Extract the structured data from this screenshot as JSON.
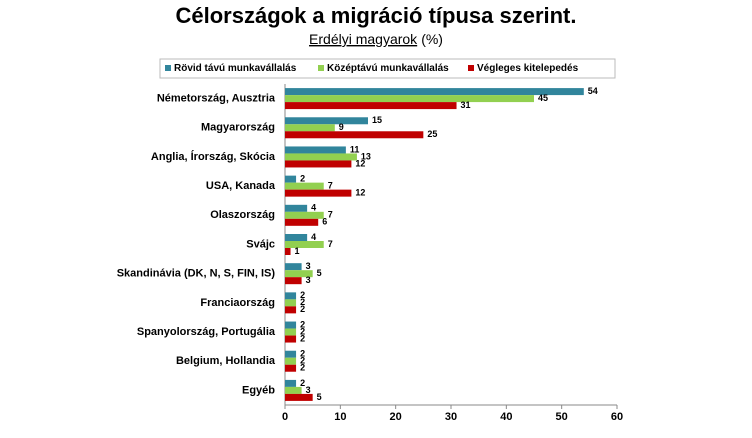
{
  "chart_data": {
    "type": "hbar",
    "title": "Célországok a migráció típusa szerint.",
    "subtitle": "Erdélyi magyarok",
    "unit": "(%)",
    "categories": [
      "Németország, Ausztria",
      "Magyarország",
      "Anglia, Írország, Skócia",
      "USA, Kanada",
      "Olaszország",
      "Svájc",
      "Skandinávia (DK, N, S, FIN, IS)",
      "Franciaország",
      "Spanyolország, Portugália",
      "Belgium, Hollandia",
      "Egyéb"
    ],
    "series": [
      {
        "name": "Rövid távú munkavállalás",
        "color": "#31859c",
        "values": [
          54,
          15,
          11,
          2,
          4,
          4,
          3,
          2,
          2,
          2,
          2
        ]
      },
      {
        "name": "Középtávú munkavállalás",
        "color": "#92d050",
        "values": [
          45,
          9,
          13,
          7,
          7,
          7,
          5,
          2,
          2,
          2,
          3
        ]
      },
      {
        "name": "Végleges kitelepedés",
        "color": "#c00000",
        "values": [
          31,
          25,
          12,
          12,
          6,
          1,
          3,
          2,
          2,
          2,
          5
        ]
      }
    ],
    "xlim": [
      0,
      60
    ],
    "xticks": [
      0,
      10,
      20,
      30,
      40,
      50,
      60
    ],
    "legend": "top"
  }
}
